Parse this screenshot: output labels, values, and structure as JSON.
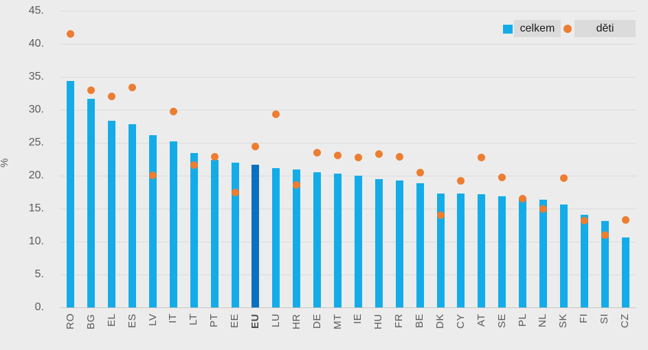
{
  "chart_data": {
    "type": "bar",
    "subtype": "bar-with-scatter-overlay",
    "title": "",
    "xlabel": "",
    "ylabel": "%",
    "ylim": [
      0,
      45
    ],
    "ytick_step": 5,
    "ytick_labels": [
      "0.",
      "5.",
      "10.",
      "15.",
      "20.",
      "25.",
      "30.",
      "35.",
      "40.",
      "45."
    ],
    "grid": true,
    "legend_position": "top-right",
    "categories": [
      "RO",
      "BG",
      "EL",
      "ES",
      "LV",
      "IT",
      "LT",
      "PT",
      "EE",
      "EU",
      "LU",
      "HR",
      "DE",
      "MT",
      "IE",
      "HU",
      "FR",
      "BE",
      "DK",
      "CY",
      "AT",
      "SE",
      "PL",
      "NL",
      "SK",
      "FI",
      "SI",
      "CZ"
    ],
    "series": [
      {
        "name": "celkem",
        "type": "bar",
        "values": [
          34.4,
          31.7,
          28.3,
          27.8,
          26.1,
          25.2,
          23.4,
          22.4,
          22.0,
          21.7,
          21.1,
          20.9,
          20.5,
          20.3,
          20.0,
          19.5,
          19.3,
          18.9,
          17.3,
          17.3,
          17.2,
          16.9,
          16.7,
          16.4,
          15.6,
          14.1,
          13.1,
          10.6
        ]
      },
      {
        "name": "děti",
        "type": "scatter",
        "values": [
          41.5,
          33.0,
          32.0,
          33.4,
          20.1,
          29.7,
          21.6,
          22.9,
          17.4,
          24.4,
          29.3,
          18.6,
          23.5,
          23.1,
          22.8,
          23.3,
          22.9,
          20.5,
          14.0,
          19.2,
          22.8,
          19.7,
          16.5,
          15.0,
          19.6,
          13.2,
          11.0,
          13.3
        ]
      }
    ],
    "highlight_category": "EU"
  },
  "colors": {
    "background": "#ECECEC",
    "bar": "#14ACE8",
    "bar_highlight": "#0B70C0",
    "dot": "#ED7D31",
    "gridline": "#DADADA",
    "axis_line": "#C5C5C5",
    "axis_text": "#595959",
    "legend_box_bg": "#DBDBDB",
    "legend_text": "#1A1A1A"
  }
}
